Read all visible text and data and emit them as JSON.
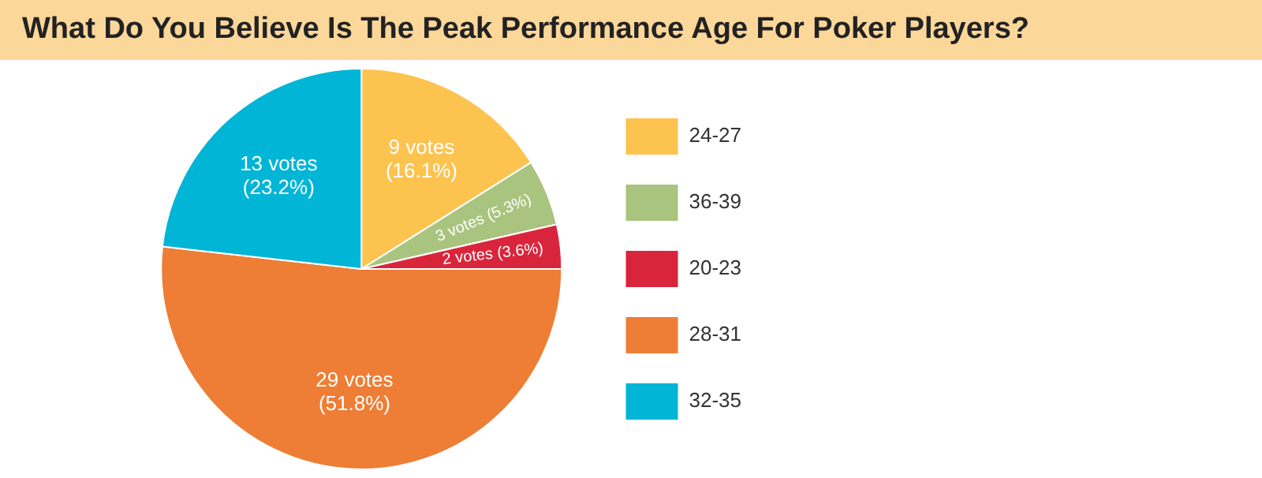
{
  "chart_data": {
    "type": "pie",
    "title": "What Do You Believe Is The Peak Performance Age For Poker Players?",
    "categories": [
      "24-27",
      "36-39",
      "20-23",
      "28-31",
      "32-35"
    ],
    "values": [
      9,
      3,
      2,
      29,
      13
    ],
    "colors": [
      "#fdc34f",
      "#a9c47f",
      "#d9253c",
      "#ee7d35",
      "#00b5d6"
    ],
    "value_labels": [
      "9 votes\n(16.1%)",
      "3 votes\n(5.3%)",
      "2 votes\n(3.6%)",
      "29 votes\n(51.8%)",
      "13 votes\n(23.2%)"
    ],
    "legend": "right"
  }
}
